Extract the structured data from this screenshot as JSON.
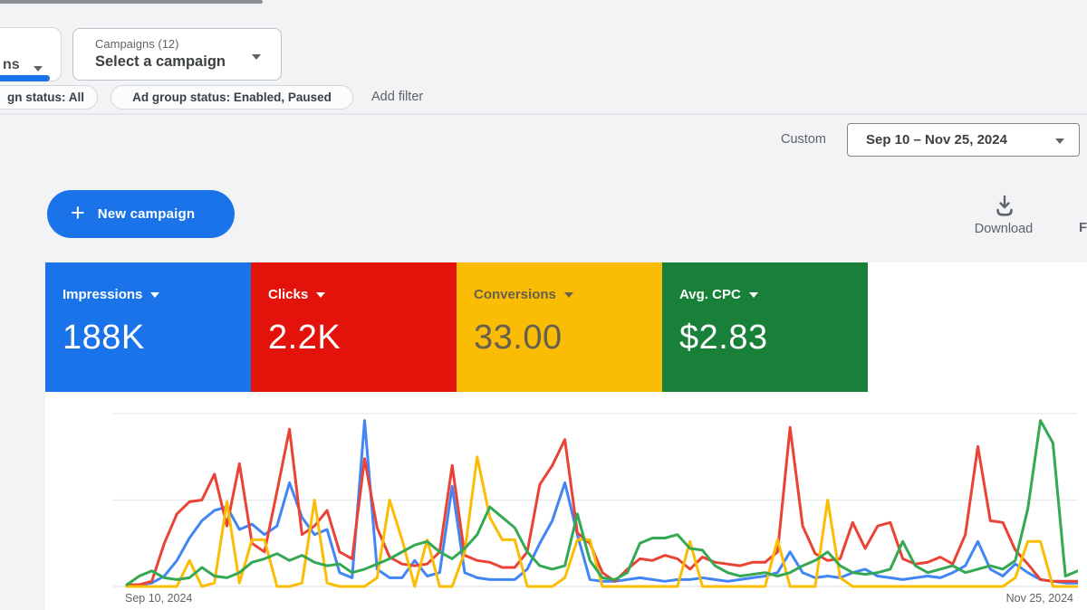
{
  "toolbar": {
    "tab": {
      "label": "ns"
    },
    "campaign_selector": {
      "eyebrow": "Campaigns (12)",
      "value": "Select a campaign"
    },
    "filters": [
      {
        "label": "gn status: All"
      },
      {
        "label": "Ad group status: Enabled, Paused"
      }
    ],
    "add_filter_label": "Add filter"
  },
  "date_range": {
    "mode_label": "Custom",
    "value": "Sep 10 – Nov 25, 2024"
  },
  "actions": {
    "new_campaign_label": "New campaign",
    "plus_glyph": "+",
    "download_label": "Download",
    "truncated_label": "F"
  },
  "scorecards": [
    {
      "label": "Impressions",
      "value": "188K",
      "bg": "#1a73e8",
      "fg": "#ffffff"
    },
    {
      "label": "Clicks",
      "value": "2.2K",
      "bg": "#e3120b",
      "fg": "#ffffff"
    },
    {
      "label": "Conversions",
      "value": "33.00",
      "bg": "#fbbc05",
      "fg": "#66604f"
    },
    {
      "label": "Avg. CPC",
      "value": "$2.83",
      "bg": "#188038",
      "fg": "#ffffff"
    }
  ],
  "chart_data": {
    "type": "line",
    "x_axis": {
      "start_label": "Sep 10, 2024",
      "end_label": "Nov 25, 2024",
      "points": 77,
      "unit": "day"
    },
    "y_axis": "unlabeled; values are relative heights (0–100) of plot area",
    "ylim": [
      0,
      100
    ],
    "gridline_values": [
      0,
      50,
      100
    ],
    "grid_color": "#e8eaed",
    "legend_position": "none (series colors match scorecards)",
    "series": [
      {
        "name": "Impressions",
        "color": "#4285f4",
        "values": [
          1,
          1,
          2,
          6,
          15,
          28,
          38,
          44,
          46,
          33,
          36,
          30,
          35,
          60,
          40,
          30,
          33,
          8,
          5,
          96,
          10,
          5,
          5,
          15,
          6,
          8,
          58,
          8,
          5,
          4,
          4,
          4,
          10,
          25,
          38,
          60,
          30,
          4,
          3,
          3,
          4,
          5,
          4,
          3,
          4,
          4,
          5,
          4,
          3,
          4,
          5,
          6,
          8,
          20,
          8,
          5,
          6,
          5,
          8,
          10,
          6,
          5,
          4,
          5,
          6,
          5,
          8,
          12,
          26,
          10,
          6,
          13,
          8,
          4,
          3,
          2,
          2
        ]
      },
      {
        "name": "Clicks",
        "color": "#ea4335",
        "values": [
          1,
          1,
          3,
          25,
          42,
          49,
          50,
          65,
          35,
          71,
          25,
          20,
          55,
          91,
          30,
          35,
          44,
          20,
          16,
          74,
          34,
          17,
          13,
          12,
          13,
          20,
          70,
          18,
          15,
          14,
          11,
          11,
          20,
          59,
          70,
          85,
          31,
          25,
          8,
          3,
          10,
          16,
          15,
          18,
          16,
          10,
          17,
          14,
          13,
          12,
          14,
          14,
          20,
          92,
          35,
          19,
          15,
          16,
          37,
          22,
          35,
          37,
          16,
          13,
          14,
          17,
          13,
          30,
          81,
          38,
          37,
          21,
          13,
          4,
          3,
          3,
          3
        ]
      },
      {
        "name": "Conversions",
        "color": "#fbbc04",
        "values": [
          0,
          0,
          0,
          0,
          0,
          15,
          0,
          2,
          49,
          2,
          27,
          27,
          0,
          0,
          2,
          50,
          2,
          0,
          0,
          0,
          5,
          50,
          27,
          0,
          27,
          0,
          0,
          20,
          75,
          40,
          27,
          27,
          0,
          0,
          0,
          5,
          27,
          27,
          0,
          0,
          0,
          0,
          0,
          0,
          0,
          26,
          0,
          0,
          0,
          0,
          0,
          0,
          27,
          0,
          0,
          0,
          50,
          5,
          0,
          0,
          0,
          0,
          0,
          0,
          0,
          0,
          0,
          0,
          0,
          0,
          0,
          5,
          26,
          26,
          0,
          0,
          0
        ]
      },
      {
        "name": "Avg. CPC",
        "color": "#34a853",
        "values": [
          1,
          6,
          9,
          5,
          4,
          5,
          11,
          6,
          5,
          8,
          14,
          16,
          19,
          15,
          18,
          14,
          12,
          13,
          8,
          10,
          13,
          16,
          20,
          24,
          26,
          20,
          16,
          22,
          30,
          46,
          40,
          34,
          20,
          12,
          10,
          12,
          42,
          15,
          5,
          4,
          8,
          25,
          28,
          28,
          30,
          22,
          21,
          12,
          8,
          6,
          7,
          8,
          6,
          8,
          12,
          15,
          20,
          12,
          8,
          7,
          8,
          10,
          26,
          12,
          8,
          10,
          12,
          8,
          10,
          12,
          10,
          15,
          45,
          96,
          83,
          6,
          9
        ]
      }
    ]
  }
}
